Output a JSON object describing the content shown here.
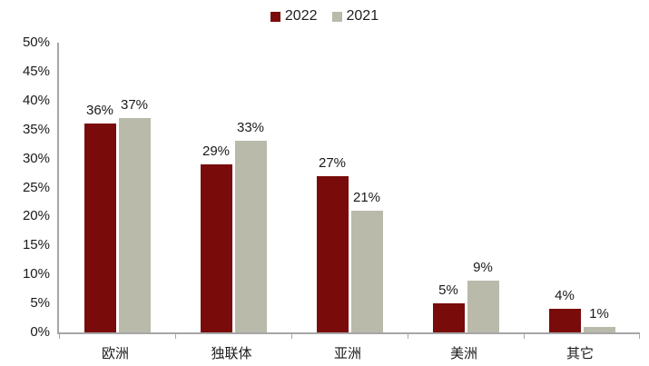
{
  "chart_data": {
    "type": "bar",
    "title": "",
    "xlabel": "",
    "ylabel": "",
    "categories": [
      "欧洲",
      "独联体",
      "亚洲",
      "美洲",
      "其它"
    ],
    "series": [
      {
        "name": "2022",
        "color": "#790b0b",
        "values": [
          36,
          29,
          27,
          5,
          4
        ],
        "data_labels": [
          "36%",
          "29%",
          "27%",
          "5%",
          "4%"
        ]
      },
      {
        "name": "2021",
        "color": "#b9baaa",
        "values": [
          37,
          33,
          21,
          9,
          1
        ],
        "data_labels": [
          "37%",
          "33%",
          "21%",
          "9%",
          "1%"
        ]
      }
    ],
    "ylim": [
      0,
      50
    ],
    "ytick_step": 5,
    "ytick_labels": [
      "0%",
      "5%",
      "10%",
      "15%",
      "20%",
      "25%",
      "30%",
      "35%",
      "40%",
      "45%",
      "50%"
    ],
    "grid": false,
    "legend_position": "top-center",
    "background_color": "#ffffff",
    "axis_color": "#a6a6a6",
    "text_color": "#1a1a1a"
  }
}
